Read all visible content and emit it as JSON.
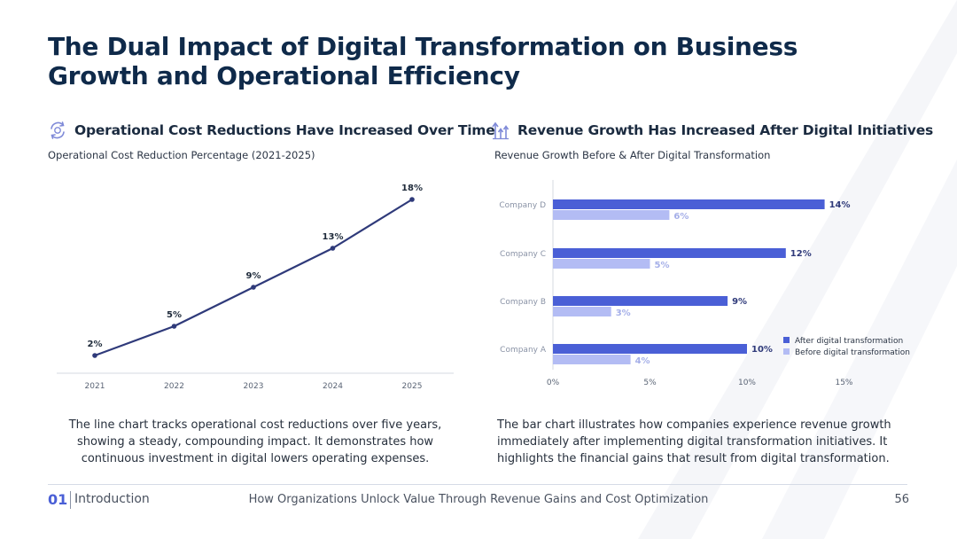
{
  "slide": {
    "title": "The Dual Impact of Digital Transformation on Business Growth and Operational Efficiency"
  },
  "left": {
    "heading": "Operational Cost Reductions Have Increased Over Time",
    "subtitle": "Operational Cost Reduction Percentage (2021-2025)",
    "description": "The line chart tracks operational cost reductions over five years, showing a steady, compounding impact. It demonstrates how continuous investment in digital lowers operating expenses.",
    "icon": "cost-cycle-icon"
  },
  "right": {
    "heading": "Revenue Growth Has Increased After Digital Initiatives",
    "subtitle": "Revenue Growth Before & After Digital Transformation",
    "description": "The bar chart illustrates how companies experience revenue growth immediately after implementing digital transformation initiatives. It highlights the financial gains that result from digital transformation.",
    "icon": "growth-arrows-icon"
  },
  "footer": {
    "number": "01",
    "section": "Introduction",
    "center": "How Organizations Unlock Value Through Revenue Gains and Cost Optimization",
    "page": "56"
  },
  "colors": {
    "line": "#2f3a7a",
    "after": "#4a5fd6",
    "before": "#b3bcf4",
    "title": "#0f2a4a"
  },
  "chart_data": [
    {
      "type": "line",
      "title": "Operational Cost Reduction Percentage (2021-2025)",
      "categories": [
        "2021",
        "2022",
        "2023",
        "2024",
        "2025"
      ],
      "values": [
        2,
        5,
        9,
        13,
        18
      ],
      "labels": [
        "2%",
        "5%",
        "9%",
        "13%",
        "18%"
      ],
      "xlabel": "",
      "ylabel": "",
      "ylim": [
        0,
        20
      ]
    },
    {
      "type": "bar",
      "orientation": "horizontal",
      "title": "Revenue Growth Before & After Digital Transformation",
      "categories": [
        "Company D",
        "Company C",
        "Company B",
        "Company A"
      ],
      "series": [
        {
          "name": "After digital transformation",
          "values": [
            14,
            12,
            9,
            10
          ],
          "labels": [
            "14%",
            "12%",
            "9%",
            "10%"
          ]
        },
        {
          "name": "Before digital transformation",
          "values": [
            6,
            5,
            3,
            4
          ],
          "labels": [
            "6%",
            "5%",
            "3%",
            "4%"
          ]
        }
      ],
      "xticks": [
        "0%",
        "5%",
        "10%",
        "15%"
      ],
      "xtick_values": [
        0,
        5,
        10,
        15
      ],
      "xlim": [
        0,
        15
      ],
      "legend": "bottom-right"
    }
  ]
}
